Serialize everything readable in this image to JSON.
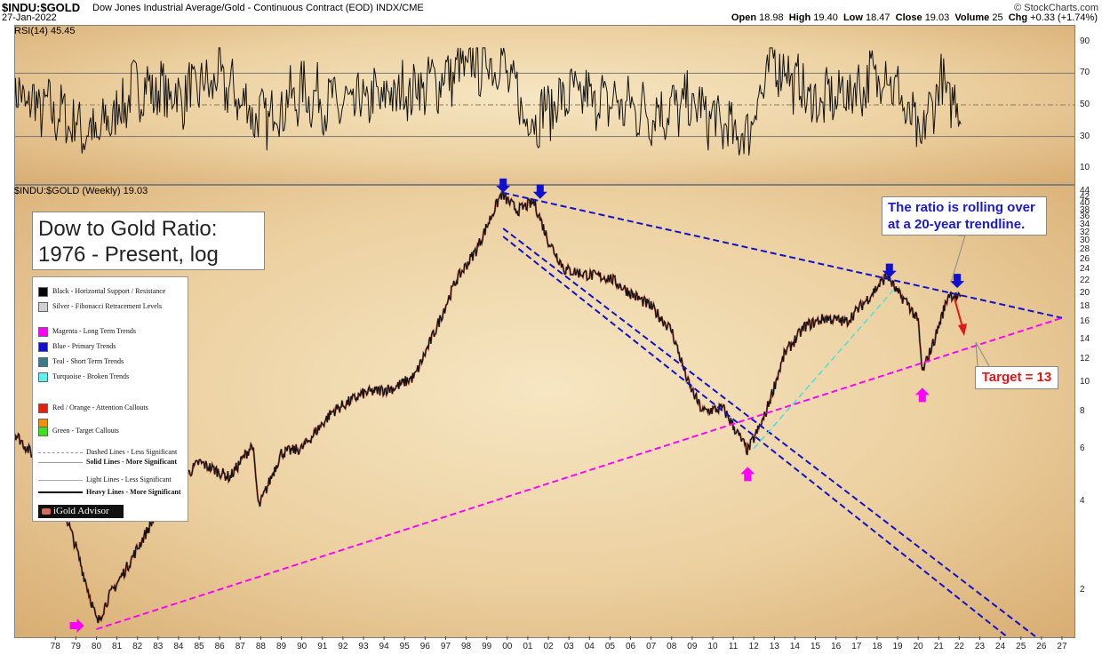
{
  "header": {
    "symbol": "$INDU:$GOLD",
    "description": "Dow Jones Industrial Average/Gold - Continuous Contract (EOD)  INDX/CME",
    "logo": "© StockCharts.com",
    "date": "27-Jan-2022",
    "open_label": "Open",
    "open": "18.98",
    "high_label": "High",
    "high": "19.40",
    "low_label": "Low",
    "low": "18.47",
    "close_label": "Close",
    "close": "19.03",
    "volume_label": "Volume",
    "volume": "25",
    "chg_label": "Chg",
    "chg": "+0.33 (+1.74%)"
  },
  "title_box": {
    "line1": "Dow to Gold Ratio:",
    "line2": "1976 - Present, log"
  },
  "legend": {
    "items": [
      {
        "label": "Black - Horizontal Support / Resistance",
        "color": "#000000"
      },
      {
        "label": "Silver - Fibonacci Retracement Levels",
        "color": "#c8c8c8"
      },
      {
        "label": "Magenta - Long Term Trends",
        "color": "#ff00ff"
      },
      {
        "label": "Blue - Primary Trends",
        "color": "#1010d0"
      },
      {
        "label": "Teal - Short Term Trends",
        "color": "#3a7a8a"
      },
      {
        "label": "Turquoise - Broken Trends",
        "color": "#60f0f0"
      },
      {
        "label": "Red / Orange - Attention Callouts",
        "color": "#e02010"
      },
      {
        "label": "Orange",
        "color": "#f09010"
      },
      {
        "label": "Green - Target Callouts",
        "color": "#40e020"
      }
    ],
    "lines": [
      {
        "label": "Dashed Lines - Less Significant"
      },
      {
        "label": "Solid Lines - More Significant"
      },
      {
        "label": "Light Lines - Less Significant"
      },
      {
        "label": "Heavy Lines - More Significant"
      }
    ],
    "brand": "iGold Advisor"
  },
  "callouts": {
    "rolling_over": [
      "The ratio is rolling over",
      "at a 20-year trendline."
    ],
    "target": "Target = 13"
  },
  "chart_data": [
    {
      "type": "line",
      "title": "RSI(14) 45.45",
      "ylim": [
        0,
        100
      ],
      "yticks": [
        10,
        30,
        50,
        70,
        90
      ],
      "reference_lines": [
        30,
        50,
        70
      ],
      "x": [
        1976,
        1978,
        1980,
        1982,
        1984,
        1986,
        1988,
        1990,
        1992,
        1994,
        1996,
        1998,
        1999.7,
        2001,
        2003,
        2005,
        2007,
        2009,
        2011.5,
        2013,
        2015,
        2017,
        2018.5,
        2020.1,
        2021,
        2022.1
      ],
      "values": [
        55,
        45,
        30,
        62,
        55,
        66,
        40,
        58,
        48,
        55,
        62,
        74,
        78,
        40,
        56,
        52,
        45,
        50,
        28,
        80,
        50,
        60,
        72,
        26,
        64,
        45.45
      ]
    },
    {
      "type": "line",
      "title": "$INDU:$GOLD (Weekly) 19.03",
      "scale": "log",
      "ylim": [
        1.4,
        45
      ],
      "yticks": [
        2,
        4,
        6,
        8,
        10,
        12,
        14,
        16,
        18,
        20,
        22,
        24,
        26,
        28,
        30,
        32,
        34,
        36,
        38,
        40,
        42,
        44
      ],
      "xtick_labels": [
        "78",
        "79",
        "80",
        "81",
        "82",
        "83",
        "84",
        "85",
        "86",
        "87",
        "88",
        "89",
        "90",
        "91",
        "92",
        "93",
        "94",
        "95",
        "96",
        "97",
        "98",
        "99",
        "00",
        "01",
        "02",
        "03",
        "04",
        "05",
        "06",
        "07",
        "08",
        "09",
        "10",
        "11",
        "12",
        "13",
        "14",
        "15",
        "16",
        "17",
        "18",
        "19",
        "20",
        "21",
        "22",
        "23",
        "24",
        "25",
        "26",
        "27"
      ],
      "x": [
        1976.0,
        1977.0,
        1978.0,
        1979.0,
        1979.6,
        1980.05,
        1980.6,
        1981.5,
        1982.5,
        1983.5,
        1985.0,
        1986.5,
        1987.6,
        1987.9,
        1989.0,
        1990.0,
        1991.5,
        1993.0,
        1994.5,
        1995.5,
        1996.5,
        1997.5,
        1998.5,
        1999.7,
        2000.5,
        2001.3,
        2002.0,
        2002.8,
        2004.0,
        2005.0,
        2006.0,
        2007.0,
        2008.0,
        2008.8,
        2009.5,
        2010.5,
        2011.7,
        2012.5,
        2013.5,
        2014.5,
        2015.5,
        2016.5,
        2017.5,
        2018.5,
        2019.0,
        2019.5,
        2020.0,
        2020.2,
        2020.8,
        2021.5,
        2022.1
      ],
      "values": [
        6.8,
        5.6,
        4.6,
        2.8,
        2.0,
        1.55,
        1.9,
        2.4,
        3.2,
        4.2,
        5.4,
        4.8,
        6.2,
        3.8,
        5.8,
        6.0,
        8.0,
        9.2,
        9.6,
        10.5,
        15.0,
        22.0,
        28.0,
        43.0,
        38.0,
        40.5,
        30.0,
        24.0,
        23.0,
        22.5,
        20.0,
        18.0,
        15.0,
        10.0,
        8.0,
        8.2,
        5.9,
        7.6,
        12.5,
        15.5,
        16.5,
        16.0,
        19.0,
        23.0,
        20.0,
        18.5,
        16.0,
        10.8,
        14.0,
        20.0,
        19.03
      ],
      "trendlines": [
        {
          "name": "Blue primary downtrend (upper)",
          "color": "#1010d0",
          "x": [
            1999.8,
            2027.0
          ],
          "y": [
            43.5,
            16.5
          ]
        },
        {
          "name": "Blue primary downtrend 1",
          "color": "#1010d0",
          "x": [
            1999.8,
            2025.7
          ],
          "y": [
            33.0,
            1.4
          ]
        },
        {
          "name": "Blue primary downtrend 2",
          "color": "#1010d0",
          "x": [
            1999.8,
            2024.3
          ],
          "y": [
            31.0,
            1.4
          ]
        },
        {
          "name": "Magenta long term uptrend",
          "color": "#ff00ff",
          "x": [
            1980.0,
            2027.0
          ],
          "y": [
            1.48,
            16.5
          ]
        },
        {
          "name": "Turquoise broken trend",
          "color": "#40e0e0",
          "x": [
            2012.0,
            2018.8
          ],
          "y": [
            6.0,
            20.5
          ]
        }
      ],
      "arrows": [
        {
          "color": "#1010d0",
          "direction": "down",
          "x": 1999.8,
          "y": 43.5
        },
        {
          "color": "#1010d0",
          "direction": "down",
          "x": 2001.6,
          "y": 41.5
        },
        {
          "color": "#1010d0",
          "direction": "down",
          "x": 2018.6,
          "y": 22.5
        },
        {
          "color": "#1010d0",
          "direction": "down",
          "x": 2021.9,
          "y": 20.8
        },
        {
          "color": "#ff00ff",
          "direction": "up",
          "x": 2011.7,
          "y": 5.2
        },
        {
          "color": "#ff00ff",
          "direction": "up",
          "x": 2020.2,
          "y": 9.6
        },
        {
          "color": "#ff00ff",
          "direction": "right",
          "x": 1979.4,
          "y": 1.52
        }
      ]
    }
  ],
  "colors": {
    "accent_blue": "#1010d0",
    "accent_magenta": "#ff00ff",
    "target_red": "#e01818"
  }
}
